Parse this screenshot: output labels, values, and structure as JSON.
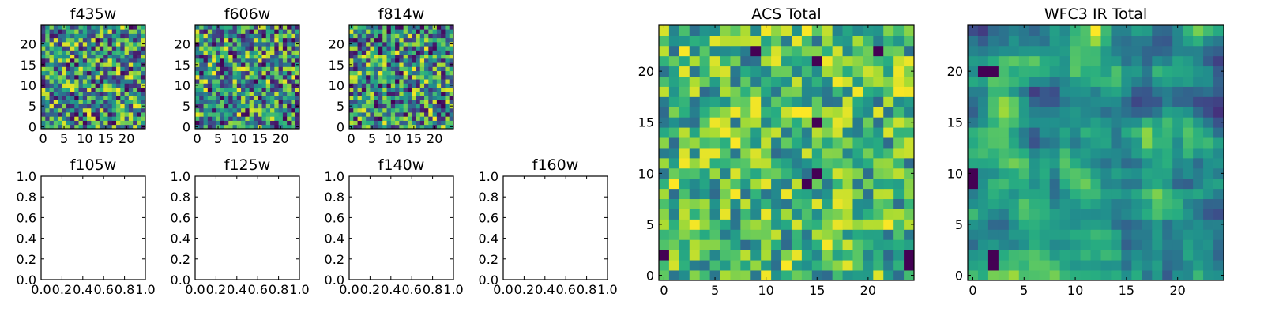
{
  "chart_data": [
    {
      "type": "heatmap",
      "title": "f435w",
      "xlim": [
        -0.5,
        24.5
      ],
      "ylim": [
        -0.5,
        24.5
      ],
      "xticks": [
        0,
        5,
        10,
        15,
        20
      ],
      "yticks": [
        0,
        5,
        10,
        15,
        20
      ],
      "xtick_labels": [
        "0",
        "5",
        "10",
        "15",
        "20"
      ],
      "ytick_labels": [
        "0",
        "5",
        "10",
        "15",
        "20"
      ],
      "grid_size": [
        25,
        25
      ],
      "colormap": "viridis",
      "value_range": [
        0,
        1
      ],
      "seed": 435,
      "note_values": "per-pixel noise values approximated"
    },
    {
      "type": "heatmap",
      "title": "f606w",
      "xlim": [
        -0.5,
        24.5
      ],
      "ylim": [
        -0.5,
        24.5
      ],
      "xticks": [
        0,
        5,
        10,
        15,
        20
      ],
      "yticks": [
        0,
        5,
        10,
        15,
        20
      ],
      "xtick_labels": [
        "0",
        "5",
        "10",
        "15",
        "20"
      ],
      "ytick_labels": [
        "0",
        "5",
        "10",
        "15",
        "20"
      ],
      "grid_size": [
        25,
        25
      ],
      "colormap": "viridis",
      "value_range": [
        0,
        1
      ],
      "seed": 606
    },
    {
      "type": "heatmap",
      "title": "f814w",
      "xlim": [
        -0.5,
        24.5
      ],
      "ylim": [
        -0.5,
        24.5
      ],
      "xticks": [
        0,
        5,
        10,
        15,
        20
      ],
      "yticks": [
        0,
        5,
        10,
        15,
        20
      ],
      "xtick_labels": [
        "0",
        "5",
        "10",
        "15",
        "20"
      ],
      "ytick_labels": [
        "0",
        "5",
        "10",
        "15",
        "20"
      ],
      "grid_size": [
        25,
        25
      ],
      "colormap": "viridis",
      "value_range": [
        0,
        1
      ],
      "seed": 814
    },
    {
      "type": "empty",
      "title": "f105w",
      "xlim": [
        0,
        1
      ],
      "ylim": [
        0,
        1
      ],
      "xtick_labels": [
        "0.0",
        "0.2",
        "0.4",
        "0.6",
        "0.8",
        "1.0"
      ],
      "ytick_labels": [
        "0.0",
        "0.2",
        "0.4",
        "0.6",
        "0.8",
        "1.0"
      ]
    },
    {
      "type": "empty",
      "title": "f125w",
      "xlim": [
        0,
        1
      ],
      "ylim": [
        0,
        1
      ],
      "xtick_labels": [
        "0.0",
        "0.2",
        "0.4",
        "0.6",
        "0.8",
        "1.0"
      ],
      "ytick_labels": [
        "0.0",
        "0.2",
        "0.4",
        "0.6",
        "0.8",
        "1.0"
      ]
    },
    {
      "type": "empty",
      "title": "f140w",
      "xlim": [
        0,
        1
      ],
      "ylim": [
        0,
        1
      ],
      "xtick_labels": [
        "0.0",
        "0.2",
        "0.4",
        "0.6",
        "0.8",
        "1.0"
      ],
      "ytick_labels": [
        "0.0",
        "0.2",
        "0.4",
        "0.6",
        "0.8",
        "1.0"
      ]
    },
    {
      "type": "empty",
      "title": "f160w",
      "xlim": [
        0,
        1
      ],
      "ylim": [
        0,
        1
      ],
      "xtick_labels": [
        "0.0",
        "0.2",
        "0.4",
        "0.6",
        "0.8",
        "1.0"
      ],
      "ytick_labels": [
        "0.0",
        "0.2",
        "0.4",
        "0.6",
        "0.8",
        "1.0"
      ]
    },
    {
      "type": "heatmap",
      "title": "ACS Total",
      "xlim": [
        -0.5,
        24.5
      ],
      "ylim": [
        -0.5,
        24.5
      ],
      "xticks": [
        0,
        5,
        10,
        15,
        20
      ],
      "yticks": [
        0,
        5,
        10,
        15,
        20
      ],
      "xtick_labels": [
        "0",
        "5",
        "10",
        "15",
        "20"
      ],
      "ytick_labels": [
        "0",
        "5",
        "10",
        "15",
        "20"
      ],
      "grid_size": [
        25,
        25
      ],
      "colormap": "viridis",
      "value_range": [
        0.35,
        1
      ],
      "seed": 1001,
      "dark_pixels": [
        [
          0,
          2
        ],
        [
          24,
          2
        ],
        [
          9,
          22
        ],
        [
          15,
          21
        ],
        [
          15,
          15
        ],
        [
          21,
          22
        ],
        [
          24,
          1
        ],
        [
          14,
          9
        ],
        [
          15,
          10
        ]
      ]
    },
    {
      "type": "heatmap",
      "title": "WFC3 IR Total",
      "xlim": [
        -0.5,
        24.5
      ],
      "ylim": [
        -0.5,
        24.5
      ],
      "xticks": [
        0,
        5,
        10,
        15,
        20
      ],
      "yticks": [
        0,
        5,
        10,
        15,
        20
      ],
      "xtick_labels": [
        "0",
        "5",
        "10",
        "15",
        "20"
      ],
      "ytick_labels": [
        "0",
        "5",
        "10",
        "15",
        "20"
      ],
      "grid_size": [
        25,
        25
      ],
      "colormap": "viridis",
      "value_range": [
        0.15,
        1
      ],
      "seed": 2002,
      "smooth": true,
      "dark_pixels": [
        [
          1,
          20
        ],
        [
          2,
          20
        ],
        [
          0,
          10
        ],
        [
          0,
          9
        ],
        [
          2,
          1
        ],
        [
          2,
          2
        ]
      ]
    }
  ]
}
